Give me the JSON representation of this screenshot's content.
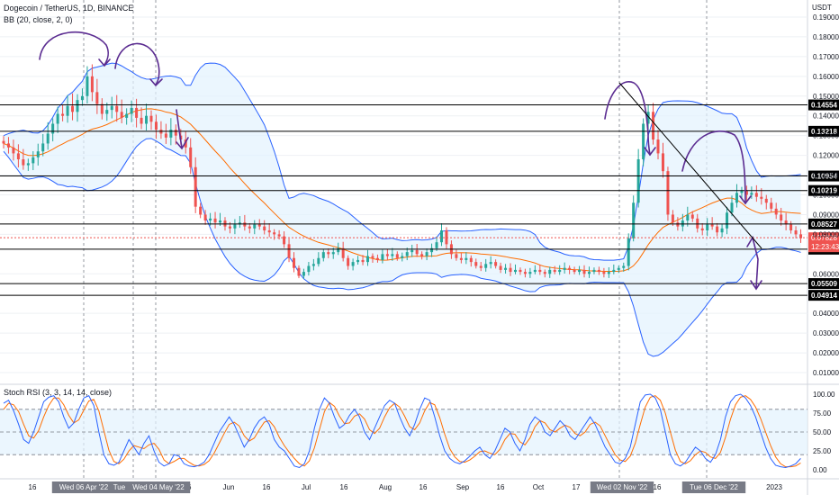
{
  "header": {
    "symbol_line": "Dogecoin / TetherUS, 1D, BINANCE",
    "bb_line": "BB (20, close, 2, 0)",
    "currency": "USDT"
  },
  "colors": {
    "up": "#26a69a",
    "down": "#ef5350",
    "bb_band": "#2962ff",
    "bb_basis": "#ff6d00",
    "bb_fill": "#e3f2fd",
    "rsi_k": "#2962ff",
    "rsi_d": "#ff6d00",
    "annotation": "#5b2c91",
    "level_line": "#000000",
    "grid": "#eef0f4",
    "price_box": "#ef5350"
  },
  "chart_data": [
    {
      "type": "candlestick",
      "name_label": "Dogecoin / TetherUS",
      "ylim": [
        0.005,
        0.195
      ],
      "y_ticks": [
        "0.19000",
        "0.18000",
        "0.17000",
        "0.16000",
        "0.15000",
        "0.14000",
        "0.13000",
        "0.12000",
        "0.11000",
        "0.10000",
        "0.09000",
        "0.08000",
        "0.06000",
        "0.04000",
        "0.03000",
        "0.02000",
        "0.01000"
      ],
      "x_ticks": [
        "16",
        "Apr",
        "16",
        "May",
        "16",
        "Jun",
        "16",
        "Jul",
        "16",
        "Aug",
        "16",
        "Sep",
        "16",
        "Oct",
        "17",
        "Nov",
        "16",
        "Dec",
        "16",
        "2023"
      ],
      "highlight_dates": [
        "Wed 06 Apr '22",
        "Tue 26",
        "Wed 04 May '22",
        "Wed 02 Nov '22",
        "Tue 06 Dec '22"
      ],
      "level_labels": [
        {
          "value": 0.14554,
          "text": "0.14554"
        },
        {
          "value": 0.13218,
          "text": "0.13218"
        },
        {
          "value": 0.10954,
          "text": "0.10954"
        },
        {
          "value": 0.10219,
          "text": "0.10219"
        },
        {
          "value": 0.08527,
          "text": "0.08527"
        },
        {
          "value": 0.0725,
          "text": "0.07250"
        },
        {
          "value": 0.05509,
          "text": "0.05509"
        },
        {
          "value": 0.04914,
          "text": "0.04914"
        }
      ],
      "current_price": {
        "value": 0.07828,
        "text": "0.07828",
        "countdown": "12:23:43"
      },
      "close_series": [
        0.126,
        0.124,
        0.121,
        0.118,
        0.115,
        0.116,
        0.119,
        0.122,
        0.126,
        0.131,
        0.136,
        0.141,
        0.14,
        0.145,
        0.142,
        0.148,
        0.15,
        0.16,
        0.152,
        0.146,
        0.141,
        0.143,
        0.145,
        0.142,
        0.139,
        0.141,
        0.144,
        0.139,
        0.136,
        0.14,
        0.137,
        0.133,
        0.131,
        0.129,
        0.133,
        0.13,
        0.128,
        0.124,
        0.114,
        0.094,
        0.09,
        0.087,
        0.088,
        0.086,
        0.087,
        0.084,
        0.083,
        0.085,
        0.086,
        0.084,
        0.083,
        0.085,
        0.084,
        0.082,
        0.081,
        0.08,
        0.079,
        0.075,
        0.068,
        0.063,
        0.059,
        0.061,
        0.064,
        0.065,
        0.068,
        0.071,
        0.07,
        0.071,
        0.073,
        0.068,
        0.064,
        0.066,
        0.067,
        0.066,
        0.069,
        0.068,
        0.067,
        0.07,
        0.069,
        0.07,
        0.068,
        0.069,
        0.071,
        0.072,
        0.07,
        0.069,
        0.071,
        0.073,
        0.076,
        0.082,
        0.075,
        0.07,
        0.068,
        0.067,
        0.068,
        0.066,
        0.064,
        0.063,
        0.065,
        0.066,
        0.064,
        0.062,
        0.063,
        0.061,
        0.062,
        0.061,
        0.06,
        0.061,
        0.062,
        0.061,
        0.06,
        0.062,
        0.061,
        0.062,
        0.063,
        0.062,
        0.061,
        0.062,
        0.06,
        0.061,
        0.062,
        0.061,
        0.06,
        0.061,
        0.062,
        0.063,
        0.064,
        0.078,
        0.096,
        0.118,
        0.136,
        0.142,
        0.128,
        0.121,
        0.112,
        0.09,
        0.086,
        0.084,
        0.087,
        0.09,
        0.088,
        0.083,
        0.082,
        0.085,
        0.084,
        0.081,
        0.083,
        0.091,
        0.096,
        0.101,
        0.102,
        0.1,
        0.101,
        0.099,
        0.098,
        0.096,
        0.093,
        0.09,
        0.087,
        0.085,
        0.082,
        0.08,
        0.078
      ]
    },
    {
      "type": "line",
      "name_label": "Stoch RSI (3, 3, 14, 14, close)",
      "ylim": [
        0,
        100
      ],
      "y_ticks": [
        "100.00",
        "75.00",
        "50.00",
        "25.00",
        "0.00"
      ],
      "series": [
        {
          "name": "K",
          "values": [
            88,
            92,
            78,
            60,
            40,
            35,
            50,
            70,
            90,
            96,
            98,
            90,
            70,
            55,
            62,
            80,
            95,
            98,
            85,
            50,
            20,
            8,
            6,
            10,
            25,
            40,
            30,
            20,
            35,
            45,
            25,
            10,
            5,
            8,
            20,
            18,
            8,
            5,
            4,
            6,
            10,
            20,
            35,
            50,
            60,
            70,
            60,
            45,
            30,
            40,
            55,
            65,
            70,
            60,
            40,
            30,
            25,
            15,
            5,
            3,
            8,
            25,
            55,
            80,
            95,
            88,
            70,
            55,
            60,
            72,
            80,
            70,
            50,
            40,
            55,
            70,
            85,
            92,
            88,
            70,
            55,
            45,
            60,
            80,
            95,
            92,
            70,
            45,
            25,
            15,
            10,
            8,
            12,
            18,
            25,
            30,
            20,
            15,
            25,
            40,
            55,
            50,
            35,
            25,
            40,
            60,
            70,
            65,
            50,
            45,
            55,
            65,
            58,
            45,
            40,
            50,
            60,
            70,
            60,
            45,
            30,
            20,
            10,
            8,
            15,
            30,
            60,
            90,
            99,
            100,
            95,
            80,
            50,
            20,
            8,
            5,
            10,
            20,
            30,
            25,
            15,
            10,
            20,
            40,
            70,
            90,
            98,
            100,
            95,
            85,
            70,
            50,
            30,
            15,
            6,
            4,
            3,
            5,
            8,
            15
          ]
        },
        {
          "name": "D",
          "values": [
            80,
            88,
            86,
            77,
            60,
            45,
            42,
            52,
            70,
            85,
            95,
            95,
            86,
            72,
            62,
            66,
            79,
            91,
            93,
            78,
            52,
            26,
            11,
            8,
            14,
            25,
            32,
            30,
            28,
            33,
            35,
            27,
            13,
            8,
            11,
            15,
            15,
            10,
            6,
            5,
            7,
            12,
            22,
            35,
            48,
            60,
            63,
            58,
            45,
            38,
            42,
            53,
            63,
            65,
            57,
            43,
            32,
            23,
            15,
            8,
            5,
            12,
            29,
            53,
            77,
            89,
            84,
            71,
            61,
            62,
            71,
            74,
            67,
            53,
            48,
            55,
            70,
            82,
            88,
            83,
            71,
            57,
            53,
            62,
            78,
            89,
            86,
            69,
            47,
            28,
            17,
            11,
            10,
            13,
            18,
            24,
            25,
            22,
            20,
            27,
            40,
            48,
            47,
            37,
            33,
            42,
            57,
            65,
            62,
            53,
            50,
            55,
            59,
            56,
            48,
            45,
            50,
            60,
            63,
            58,
            45,
            32,
            20,
            13,
            11,
            18,
            35,
            60,
            83,
            96,
            98,
            92,
            75,
            50,
            26,
            11,
            8,
            12,
            20,
            25,
            23,
            17,
            15,
            23,
            43,
            67,
            86,
            96,
            98,
            93,
            83,
            68,
            50,
            32,
            17,
            8,
            4,
            4,
            5,
            9
          ]
        }
      ]
    }
  ]
}
